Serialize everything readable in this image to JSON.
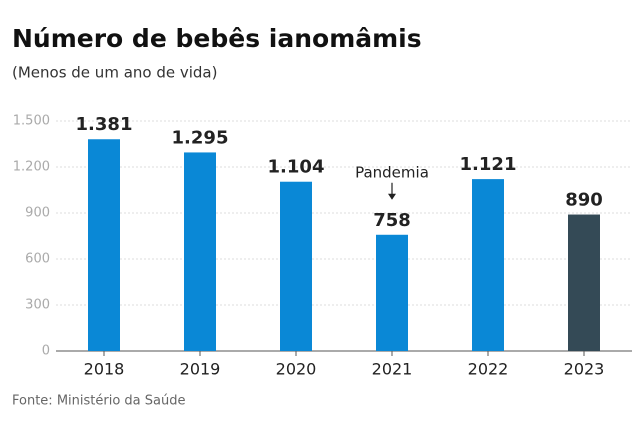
{
  "chart_data": {
    "type": "bar",
    "title": "Número de bebês ianomâmis",
    "subtitle": "(Menos de um ano de vida)",
    "source": "Fonte: Ministério da Saúde",
    "categories": [
      "2018",
      "2019",
      "2020",
      "2021",
      "2022",
      "2023"
    ],
    "values": [
      1381,
      1295,
      1104,
      758,
      1121,
      890
    ],
    "value_labels": [
      "1.381",
      "1.295",
      "1.104",
      "758",
      "1.121",
      "890"
    ],
    "colors": [
      "#0a88d6",
      "#0a88d6",
      "#0a88d6",
      "#0a88d6",
      "#0a88d6",
      "#344a56"
    ],
    "ylim": [
      0,
      1500
    ],
    "yticks": [
      0,
      300,
      600,
      900,
      {
        "value": 1200,
        "label": "1.200"
      },
      {
        "value": 1500,
        "label": "1.500"
      }
    ],
    "grid": true,
    "annotation": {
      "text": "Pandemia",
      "category": "2021"
    }
  }
}
